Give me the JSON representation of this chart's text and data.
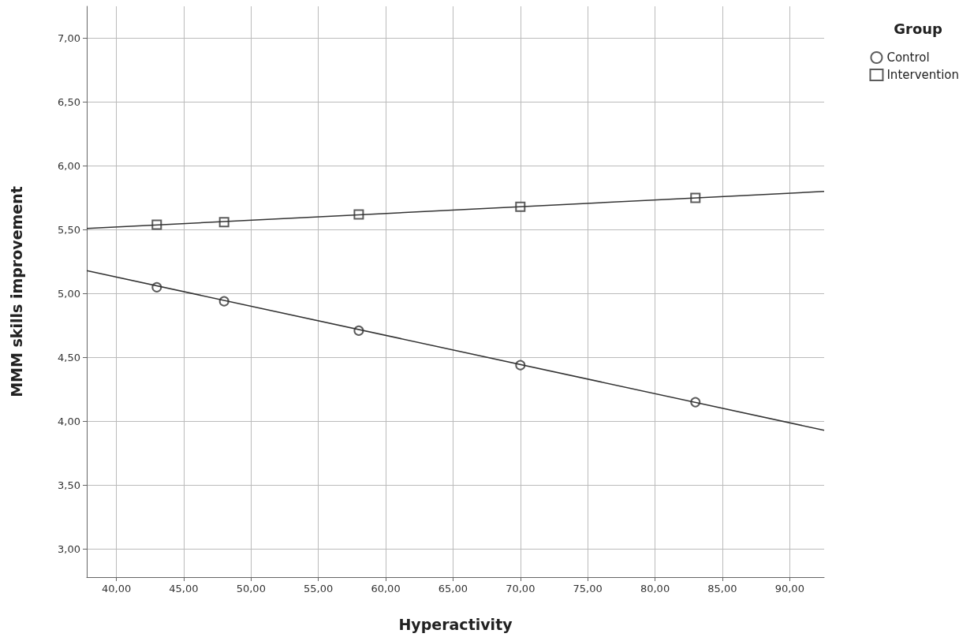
{
  "chart_data": {
    "type": "scatter",
    "xlabel": "Hyperactivity",
    "ylabel": "MMM skills improvement",
    "legend_title": "Group",
    "legend": "top right",
    "grid": true,
    "xlim": [
      37.8,
      92.56
    ],
    "ylim": [
      2.78,
      7.25
    ],
    "xticks": [
      {
        "value": 40,
        "label": "40,00"
      },
      {
        "value": 45,
        "label": "45,00"
      },
      {
        "value": 50,
        "label": "50,00"
      },
      {
        "value": 55,
        "label": "55,00"
      },
      {
        "value": 60,
        "label": "60,00"
      },
      {
        "value": 65,
        "label": "65,00"
      },
      {
        "value": 70,
        "label": "70,00"
      },
      {
        "value": 75,
        "label": "75,00"
      },
      {
        "value": 80,
        "label": "80,00"
      },
      {
        "value": 85,
        "label": "85,00"
      },
      {
        "value": 90,
        "label": "90,00"
      }
    ],
    "yticks": [
      {
        "value": 3,
        "label": "3,00"
      },
      {
        "value": 3.5,
        "label": "3,50"
      },
      {
        "value": 4,
        "label": "4,00"
      },
      {
        "value": 4.5,
        "label": "4,50"
      },
      {
        "value": 5,
        "label": "5,00"
      },
      {
        "value": 5.5,
        "label": "5,50"
      },
      {
        "value": 6,
        "label": "6,00"
      },
      {
        "value": 6.5,
        "label": "6,50"
      },
      {
        "value": 7,
        "label": "7,00"
      }
    ],
    "series": [
      {
        "name": "Control",
        "marker": "circle",
        "color": "#333333",
        "x": [
          43,
          48,
          58,
          70,
          83
        ],
        "values": [
          5.05,
          4.94,
          4.71,
          4.44,
          4.15
        ]
      },
      {
        "name": "Intervention",
        "marker": "square",
        "color": "#333333",
        "x": [
          43,
          48,
          58,
          70,
          83
        ],
        "values": [
          5.54,
          5.56,
          5.62,
          5.68,
          5.75
        ]
      },
      {
        "type": "line",
        "marker": "none",
        "color": "#333333",
        "x": [
          37.8,
          92.56
        ],
        "values": [
          5.18,
          3.93
        ]
      },
      {
        "type": "line",
        "marker": "none",
        "color": "#333333",
        "x": [
          37.8,
          92.56
        ],
        "values": [
          5.51,
          5.8
        ]
      }
    ]
  }
}
